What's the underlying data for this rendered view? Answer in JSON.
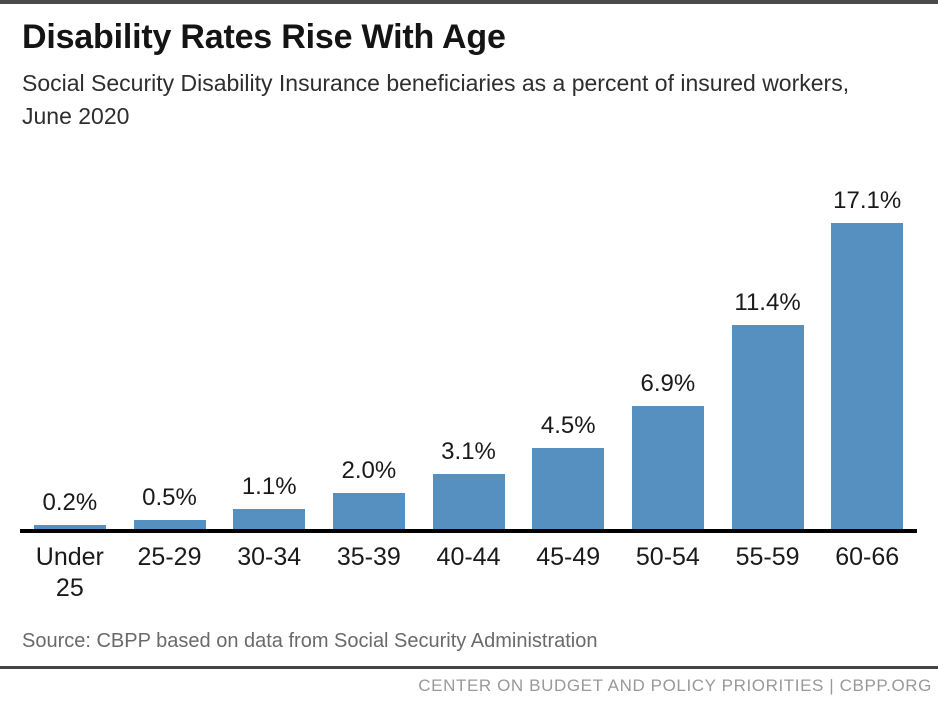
{
  "page": {
    "title": "Disability Rates Rise With Age",
    "subtitle": "Social Security Disability Insurance beneficiaries as a percent of insured workers, June 2020",
    "source": "Source: CBPP based on data from Social Security Administration",
    "footer": "CENTER ON BUDGET AND POLICY PRIORITIES | CBPP.ORG"
  },
  "colors": {
    "bar": "#5590c0",
    "axis": "#000000",
    "top_border": "#4a4a4a",
    "divider": "#454545",
    "title_text": "#141414",
    "subtitle_text": "#2e2e2e",
    "label_text": "#1a1a1a",
    "source_text": "#6a6a6a",
    "footer_text": "#999999"
  },
  "chart_data": {
    "type": "bar",
    "title": "Disability Rates Rise With Age",
    "subtitle": "Social Security Disability Insurance beneficiaries as a percent of insured workers, June 2020",
    "categories": [
      "Under 25",
      "25-29",
      "30-34",
      "35-39",
      "40-44",
      "45-49",
      "50-54",
      "55-59",
      "60-66"
    ],
    "values": [
      0.2,
      0.5,
      1.1,
      2.0,
      3.1,
      4.5,
      6.9,
      11.4,
      17.1
    ],
    "value_labels": [
      "0.2%",
      "0.5%",
      "1.1%",
      "2.0%",
      "3.1%",
      "4.5%",
      "6.9%",
      "11.4%",
      "17.1%"
    ],
    "unit": "percent",
    "xlabel": "",
    "ylabel": "",
    "ylim": [
      0,
      18
    ],
    "grid": false,
    "legend": false,
    "bar_color": "#5590c0",
    "source": "Source: CBPP based on data from Social Security Administration"
  }
}
